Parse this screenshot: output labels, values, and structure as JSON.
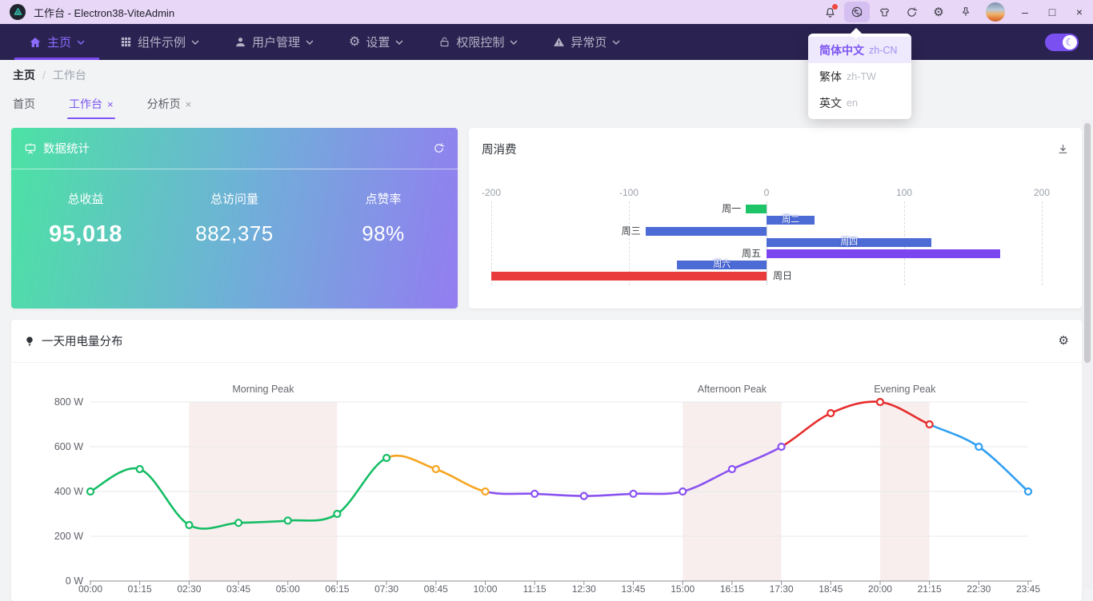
{
  "titlebar": {
    "title": "工作台 - Electron38-ViteAdmin",
    "icons": [
      "notification-bell",
      "translate",
      "theme-shirt",
      "refresh",
      "settings-gear",
      "pin"
    ],
    "window": {
      "minimize": "–",
      "maximize": "□",
      "close": "×"
    }
  },
  "glyphs": {
    "gear": "⚙",
    "moon": "☾"
  },
  "navbar": {
    "items": [
      {
        "label": "主页",
        "icon": "home",
        "active": true
      },
      {
        "label": "组件示例",
        "icon": "grid"
      },
      {
        "label": "用户管理",
        "icon": "user"
      },
      {
        "label": "设置",
        "icon": "gear"
      },
      {
        "label": "权限控制",
        "icon": "lock"
      },
      {
        "label": "异常页",
        "icon": "warning"
      }
    ]
  },
  "lang_menu": {
    "items": [
      {
        "label": "简体中文",
        "code": "zh-CN",
        "active": true
      },
      {
        "label": "繁体",
        "code": "zh-TW",
        "active": false
      },
      {
        "label": "英文",
        "code": "en",
        "active": false
      }
    ]
  },
  "breadcrumb": {
    "root": "主页",
    "sep": "/",
    "current": "工作台"
  },
  "tabs": [
    {
      "label": "首页",
      "closable": false
    },
    {
      "label": "工作台",
      "closable": true,
      "close": "×",
      "active": true
    },
    {
      "label": "分析页",
      "closable": true,
      "close": "×"
    }
  ],
  "stats_card": {
    "title": "数据统计",
    "stats": [
      {
        "label": "总收益",
        "value": "95,018"
      },
      {
        "label": "总访问量",
        "value": "882,375"
      },
      {
        "label": "点赞率",
        "value": "98%"
      }
    ]
  },
  "week_card": {
    "title": "周消费"
  },
  "power_card": {
    "title": "一天用电量分布"
  },
  "chart_data": [
    {
      "type": "bar",
      "orientation": "horizontal",
      "title": "周消费",
      "categories": [
        "周一",
        "周二",
        "周三",
        "周四",
        "周五",
        "周六",
        "周日"
      ],
      "values": [
        -15,
        35,
        -88,
        120,
        170,
        -65,
        -200
      ],
      "bar_colors": [
        "#1ec468",
        "#4d6bd5",
        "#4d6bd5",
        "#4d6bd5",
        "#7b45ef",
        "#4d6bd5",
        "#e93b3b"
      ],
      "label_positions": [
        "tip",
        "inside",
        "tip",
        "inside",
        "zero-left",
        "inside",
        "zero-right"
      ],
      "x_ticks": [
        -200,
        -100,
        0,
        100,
        200
      ],
      "xlim": [
        -200,
        200
      ],
      "grid": "vertical-dashed"
    },
    {
      "type": "line",
      "title": "一天用电量分布",
      "unit": "W",
      "smooth": true,
      "marker": "hollow-circle",
      "x": [
        "00:00",
        "01:15",
        "02:30",
        "03:45",
        "05:00",
        "06:15",
        "07:30",
        "08:45",
        "10:00",
        "11:15",
        "12:30",
        "13:45",
        "15:00",
        "16:15",
        "17:30",
        "18:45",
        "20:00",
        "21:15",
        "22:30",
        "23:45"
      ],
      "values": [
        400,
        500,
        250,
        260,
        270,
        300,
        550,
        500,
        400,
        390,
        380,
        390,
        400,
        500,
        600,
        750,
        800,
        700,
        600,
        400
      ],
      "ylim": [
        0,
        800
      ],
      "y_ticks": [
        0,
        200,
        400,
        600,
        800
      ],
      "segments": [
        {
          "color": "#16bd66",
          "from": 0,
          "to": 6
        },
        {
          "color": "#f7a521",
          "from": 6,
          "to": 8
        },
        {
          "color": "#8a52f0",
          "from": 8,
          "to": 14
        },
        {
          "color": "#e62c2c",
          "from": 14,
          "to": 17
        },
        {
          "color": "#2f9ff2",
          "from": 17,
          "to": 19
        }
      ],
      "mark_areas": [
        {
          "label": "Morning Peak",
          "from": "02:30",
          "to": "06:15"
        },
        {
          "label": "Afternoon Peak",
          "from": "15:00",
          "to": "17:30"
        },
        {
          "label": "Evening Peak",
          "from": "20:00",
          "to": "21:15"
        }
      ]
    }
  ],
  "colors": {
    "accent": "#7c55f2",
    "nav_bg": "#2a2351",
    "titlebar_bg": "#e8d7f7",
    "gradient_from": "#4ce2a4",
    "gradient_to": "#937df1"
  }
}
